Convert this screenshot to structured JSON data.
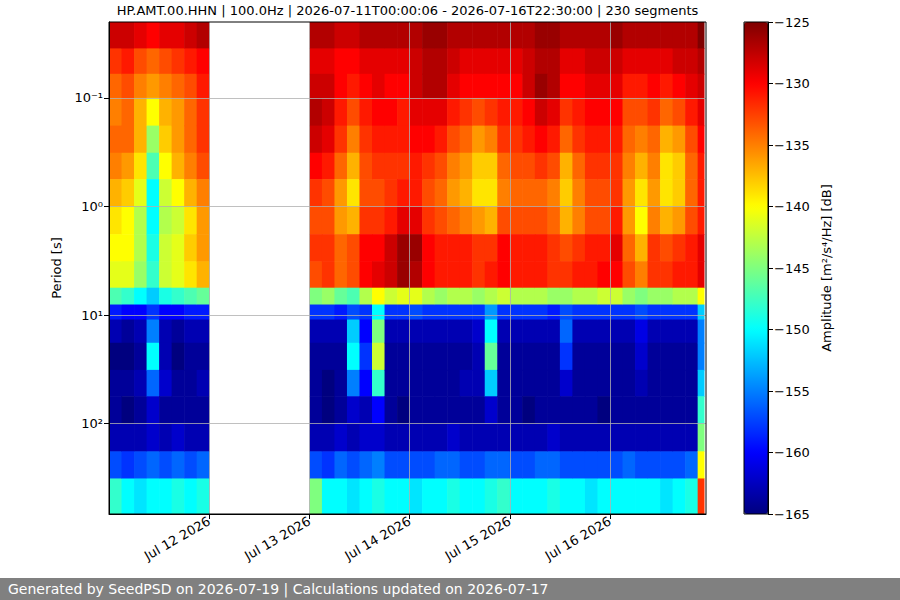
{
  "chart_data": {
    "type": "heatmap",
    "title": "HP.AMT.00.HHN | 100.0Hz | 2026-07-11T00:00:06 - 2026-07-16T22:30:00 | 230 segments",
    "footer": "Generated by SeedPSD on 2026-07-19 | Calculations updated on 2026-07-17",
    "ylabel": "Period [s]",
    "colorbar_label": "Amplitude [m²/s⁴/Hz] [dB]",
    "log": "y",
    "grid": true,
    "xlim": [
      "2026-07-11T00:00",
      "2026-07-16T23:00"
    ],
    "xticks": [
      {
        "value": "2026-07-12T00:00",
        "label": "Jul 12 2026"
      },
      {
        "value": "2026-07-13T00:00",
        "label": "Jul 13 2026"
      },
      {
        "value": "2026-07-14T00:00",
        "label": "Jul 14 2026"
      },
      {
        "value": "2026-07-15T00:00",
        "label": "Jul 15 2026"
      },
      {
        "value": "2026-07-16T00:00",
        "label": "Jul 16 2026"
      }
    ],
    "ylim": [
      0.02,
      680
    ],
    "yticks": [
      {
        "value": 0.1,
        "label": "10⁻¹"
      },
      {
        "value": 1,
        "label": "10⁰"
      },
      {
        "value": 10,
        "label": "10¹"
      },
      {
        "value": 100,
        "label": "10²"
      }
    ],
    "colorbar_range": [
      -165,
      -125
    ],
    "colorbar_ticks": [
      {
        "value": -165,
        "label": "−165"
      },
      {
        "value": -160,
        "label": "−160"
      },
      {
        "value": -155,
        "label": "−155"
      },
      {
        "value": -150,
        "label": "−150"
      },
      {
        "value": -145,
        "label": "−145"
      },
      {
        "value": -140,
        "label": "−140"
      },
      {
        "value": -135,
        "label": "−135"
      },
      {
        "value": -130,
        "label": "−130"
      },
      {
        "value": -125,
        "label": "−125"
      }
    ],
    "x_edges": [
      "2026-07-11T00:00",
      "2026-07-11T03:00",
      "2026-07-11T06:00",
      "2026-07-11T09:00",
      "2026-07-11T12:00",
      "2026-07-11T15:00",
      "2026-07-11T18:00",
      "2026-07-11T21:00",
      "2026-07-12T00:00",
      "2026-07-12T03:00",
      "2026-07-12T06:00",
      "2026-07-12T09:00",
      "2026-07-12T12:00",
      "2026-07-12T15:00",
      "2026-07-12T18:00",
      "2026-07-12T21:00",
      "2026-07-13T00:00",
      "2026-07-13T03:00",
      "2026-07-13T06:00",
      "2026-07-13T09:00",
      "2026-07-13T12:00",
      "2026-07-13T15:00",
      "2026-07-13T18:00",
      "2026-07-13T21:00",
      "2026-07-14T00:00",
      "2026-07-14T03:00",
      "2026-07-14T06:00",
      "2026-07-14T09:00",
      "2026-07-14T12:00",
      "2026-07-14T15:00",
      "2026-07-14T18:00",
      "2026-07-14T21:00",
      "2026-07-15T00:00",
      "2026-07-15T03:00",
      "2026-07-15T06:00",
      "2026-07-15T09:00",
      "2026-07-15T12:00",
      "2026-07-15T15:00",
      "2026-07-15T18:00",
      "2026-07-15T21:00",
      "2026-07-16T00:00",
      "2026-07-16T03:00",
      "2026-07-16T06:00",
      "2026-07-16T09:00",
      "2026-07-16T12:00",
      "2026-07-16T15:00",
      "2026-07-16T18:00",
      "2026-07-16T21:00",
      "2026-07-16T22:30"
    ],
    "period_edges": [
      0.02,
      0.035,
      0.06,
      0.1,
      0.18,
      0.32,
      0.56,
      1,
      1.8,
      3.2,
      5.6,
      8,
      11,
      18,
      32,
      56,
      100,
      180,
      320,
      680
    ],
    "cells": [
      [
        -128,
        -132,
        -134,
        -135,
        -134,
        -135,
        -137,
        -139,
        -140,
        -141,
        -147,
        -159,
        -163,
        -165,
        -164,
        -164,
        -163,
        -157,
        -148
      ],
      [
        -128,
        -131,
        -133,
        -134,
        -134,
        -136,
        -138,
        -140,
        -140,
        -141,
        -148,
        -160,
        -164,
        -165,
        -164,
        -165,
        -163,
        -158,
        -150
      ],
      [
        -129,
        -133,
        -135,
        -137,
        -137,
        -139,
        -141,
        -143,
        -143,
        -144,
        -150,
        -160,
        -163,
        -164,
        -163,
        -164,
        -163,
        -157,
        -151
      ],
      [
        -130,
        -134,
        -136,
        -140,
        -144,
        -147,
        -150,
        -150,
        -149,
        -148,
        -152,
        -158,
        -155,
        -150,
        -156,
        -162,
        -162,
        -156,
        -150
      ],
      [
        -129,
        -133,
        -135,
        -137,
        -138,
        -140,
        -142,
        -143,
        -142,
        -142,
        -149,
        -160,
        -163,
        -163,
        -162,
        -164,
        -163,
        -157,
        -150
      ],
      [
        -129,
        -132,
        -134,
        -136,
        -136,
        -137,
        -140,
        -142,
        -141,
        -141,
        -148,
        -160,
        -164,
        -165,
        -164,
        -164,
        -162,
        -156,
        -149
      ],
      [
        -128,
        -131,
        -133,
        -134,
        -134,
        -135,
        -137,
        -139,
        -138,
        -139,
        -147,
        -159,
        -163,
        -164,
        -164,
        -164,
        -163,
        -157,
        -150
      ],
      [
        -127,
        -130,
        -131,
        -132,
        -132,
        -133,
        -135,
        -136,
        -136,
        -137,
        -146,
        -159,
        -163,
        -164,
        -163,
        -164,
        -163,
        -156,
        -149
      ],
      null,
      null,
      null,
      null,
      null,
      null,
      null,
      null,
      [
        -127,
        -129,
        -128,
        -127,
        -128,
        -130,
        -132,
        -133,
        -132,
        -133,
        -145,
        -158,
        -163,
        -164,
        -164,
        -164,
        -163,
        -157,
        -145
      ],
      [
        -127,
        -129,
        -128,
        -128,
        -129,
        -131,
        -133,
        -133,
        -132,
        -132,
        -144,
        -158,
        -163,
        -164,
        -165,
        -165,
        -163,
        -158,
        -150
      ],
      [
        -128,
        -130,
        -130,
        -131,
        -132,
        -134,
        -136,
        -136,
        -134,
        -134,
        -146,
        -159,
        -163,
        -164,
        -164,
        -164,
        -162,
        -156,
        -150
      ],
      [
        -128,
        -130,
        -131,
        -133,
        -135,
        -137,
        -139,
        -137,
        -133,
        -133,
        -147,
        -157,
        -152,
        -150,
        -155,
        -162,
        -163,
        -157,
        -151
      ],
      [
        -127,
        -129,
        -130,
        -131,
        -132,
        -133,
        -133,
        -132,
        -130,
        -130,
        -143,
        -158,
        -160,
        -158,
        -160,
        -163,
        -162,
        -156,
        -150
      ],
      [
        -127,
        -129,
        -129,
        -130,
        -131,
        -132,
        -133,
        -132,
        -130,
        -129,
        -140,
        -150,
        -145,
        -142,
        -148,
        -160,
        -162,
        -155,
        -149
      ],
      [
        -127,
        -129,
        -130,
        -130,
        -131,
        -132,
        -132,
        -131,
        -128,
        -128,
        -142,
        -158,
        -163,
        -164,
        -164,
        -164,
        -163,
        -157,
        -150
      ],
      [
        -127,
        -129,
        -130,
        -131,
        -131,
        -132,
        -131,
        -129,
        -126,
        -126,
        -141,
        -158,
        -163,
        -164,
        -164,
        -165,
        -163,
        -157,
        -150
      ],
      [
        -127,
        -128,
        -128,
        -129,
        -130,
        -131,
        -131,
        -129,
        -126,
        -127,
        -141,
        -157,
        -163,
        -164,
        -164,
        -164,
        -163,
        -157,
        -151
      ],
      [
        -126,
        -127,
        -127,
        -129,
        -130,
        -132,
        -133,
        -132,
        -130,
        -130,
        -143,
        -158,
        -163,
        -164,
        -164,
        -164,
        -163,
        -157,
        -150
      ],
      [
        -126,
        -127,
        -127,
        -129,
        -131,
        -133,
        -134,
        -133,
        -131,
        -131,
        -144,
        -158,
        -163,
        -164,
        -164,
        -164,
        -163,
        -156,
        -150
      ],
      [
        -127,
        -128,
        -129,
        -131,
        -133,
        -135,
        -136,
        -134,
        -131,
        -131,
        -143,
        -158,
        -163,
        -164,
        -164,
        -164,
        -162,
        -156,
        -149
      ],
      [
        -127,
        -129,
        -130,
        -132,
        -134,
        -136,
        -137,
        -135,
        -131,
        -131,
        -143,
        -158,
        -163,
        -164,
        -163,
        -164,
        -163,
        -157,
        -150
      ],
      [
        -127,
        -129,
        -130,
        -133,
        -136,
        -138,
        -139,
        -136,
        -132,
        -132,
        -144,
        -158,
        -162,
        -163,
        -163,
        -164,
        -163,
        -157,
        -150
      ],
      [
        -127,
        -129,
        -130,
        -132,
        -135,
        -138,
        -139,
        -137,
        -132,
        -131,
        -143,
        -154,
        -150,
        -146,
        -152,
        -162,
        -163,
        -156,
        -149
      ],
      [
        -127,
        -129,
        -130,
        -131,
        -132,
        -134,
        -135,
        -133,
        -130,
        -130,
        -142,
        -158,
        -163,
        -164,
        -164,
        -164,
        -163,
        -156,
        -148
      ],
      [
        -127,
        -129,
        -130,
        -131,
        -132,
        -133,
        -134,
        -133,
        -131,
        -131,
        -143,
        -158,
        -163,
        -164,
        -164,
        -164,
        -163,
        -157,
        -150
      ],
      [
        -127,
        -128,
        -128,
        -130,
        -131,
        -133,
        -134,
        -133,
        -131,
        -131,
        -143,
        -158,
        -163,
        -164,
        -164,
        -165,
        -163,
        -157,
        -150
      ],
      [
        -126,
        -127,
        -126,
        -128,
        -130,
        -132,
        -134,
        -133,
        -131,
        -131,
        -143,
        -158,
        -163,
        -164,
        -164,
        -164,
        -163,
        -156,
        -150
      ],
      [
        -126,
        -127,
        -127,
        -129,
        -131,
        -133,
        -135,
        -134,
        -132,
        -132,
        -144,
        -159,
        -163,
        -164,
        -164,
        -164,
        -162,
        -156,
        -149
      ],
      [
        -127,
        -129,
        -130,
        -132,
        -134,
        -137,
        -138,
        -137,
        -133,
        -132,
        -144,
        -157,
        -156,
        -158,
        -162,
        -164,
        -163,
        -157,
        -150
      ],
      [
        -127,
        -129,
        -130,
        -131,
        -132,
        -134,
        -135,
        -135,
        -132,
        -131,
        -143,
        -158,
        -163,
        -164,
        -164,
        -164,
        -163,
        -157,
        -150
      ],
      [
        -127,
        -128,
        -129,
        -130,
        -131,
        -132,
        -133,
        -133,
        -131,
        -131,
        -143,
        -158,
        -163,
        -164,
        -164,
        -164,
        -163,
        -157,
        -151
      ],
      [
        -127,
        -128,
        -129,
        -130,
        -131,
        -132,
        -133,
        -133,
        -131,
        -130,
        -142,
        -158,
        -163,
        -164,
        -164,
        -165,
        -163,
        -157,
        -150
      ],
      [
        -126,
        -128,
        -129,
        -130,
        -131,
        -132,
        -132,
        -131,
        -129,
        -130,
        -142,
        -158,
        -163,
        -164,
        -164,
        -164,
        -163,
        -157,
        -150
      ],
      [
        -127,
        -129,
        -131,
        -133,
        -134,
        -135,
        -136,
        -136,
        -134,
        -133,
        -144,
        -158,
        -163,
        -164,
        -164,
        -164,
        -163,
        -156,
        -150
      ],
      [
        -127,
        -129,
        -131,
        -133,
        -135,
        -137,
        -139,
        -140,
        -137,
        -135,
        -145,
        -157,
        -161,
        -162,
        -163,
        -164,
        -163,
        -157,
        -150
      ],
      [
        -127,
        -129,
        -130,
        -132,
        -134,
        -135,
        -136,
        -135,
        -132,
        -132,
        -144,
        -158,
        -163,
        -164,
        -164,
        -164,
        -163,
        -157,
        -150
      ],
      [
        -127,
        -129,
        -131,
        -134,
        -137,
        -139,
        -139,
        -137,
        -133,
        -132,
        -144,
        -158,
        -163,
        -164,
        -164,
        -164,
        -163,
        -157,
        -151
      ],
      [
        -127,
        -128,
        -130,
        -133,
        -136,
        -138,
        -138,
        -136,
        -132,
        -131,
        -143,
        -158,
        -163,
        -164,
        -164,
        -164,
        -163,
        -157,
        -150
      ],
      [
        -127,
        -128,
        -129,
        -131,
        -133,
        -134,
        -134,
        -133,
        -131,
        -131,
        -143,
        -158,
        -163,
        -164,
        -164,
        -164,
        -163,
        -156,
        -149
      ],
      [
        -125,
        -127,
        -128,
        -129,
        -130,
        -131,
        -131,
        -131,
        -129,
        -129,
        -140,
        -152,
        -155,
        -155,
        -152,
        -148,
        -145,
        -140,
        -132
      ]
    ]
  }
}
